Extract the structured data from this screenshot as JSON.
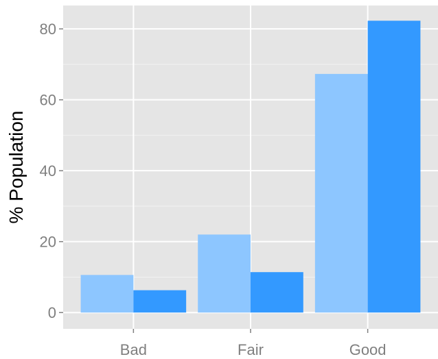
{
  "chart_data": {
    "type": "bar",
    "title": "",
    "xlabel": "",
    "ylabel": "% Population",
    "categories": [
      "Bad",
      "Fair",
      "Good"
    ],
    "series": [
      {
        "values": [
          10.6,
          22.0,
          67.3
        ],
        "color": "#8dc6ff"
      },
      {
        "values": [
          6.3,
          11.4,
          82.3
        ],
        "color": "#3399ff"
      }
    ],
    "ylim": [
      -4.6,
      86.6
    ],
    "yticks": [
      0,
      20,
      40,
      60,
      80
    ],
    "grid": true,
    "legend": "none",
    "colors": {
      "panel": "#e5e5e5",
      "grid_major": "#ffffff",
      "grid_minor": "#f2f2f2",
      "tick_label": "#7f7f7f",
      "axis_title": "#000000"
    }
  }
}
